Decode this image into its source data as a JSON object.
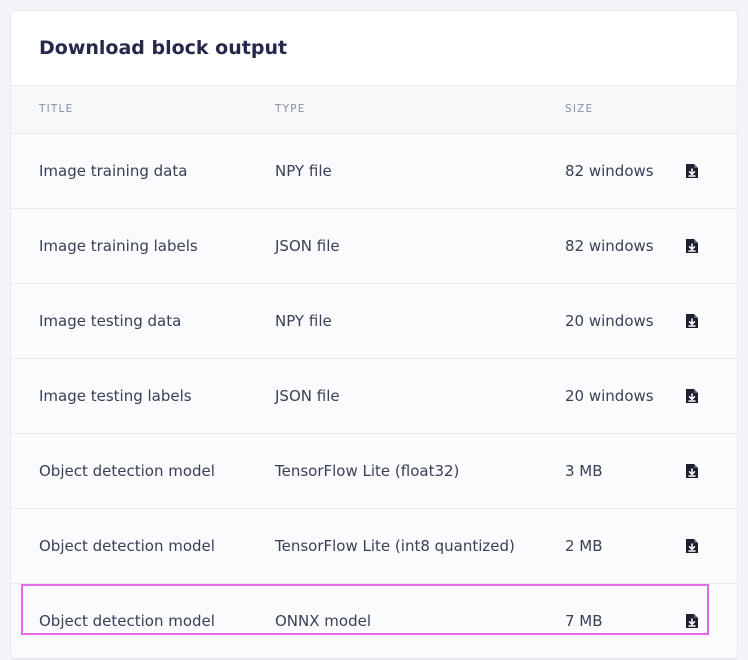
{
  "panel": {
    "title": "Download block output"
  },
  "table": {
    "headers": {
      "title": "TITLE",
      "type": "TYPE",
      "size": "SIZE"
    },
    "rows": [
      {
        "title": "Image training data",
        "type": "NPY file",
        "size": "82 windows",
        "action_icon": "file-download-icon"
      },
      {
        "title": "Image training labels",
        "type": "JSON file",
        "size": "82 windows",
        "action_icon": "file-download-icon"
      },
      {
        "title": "Image testing data",
        "type": "NPY file",
        "size": "20 windows",
        "action_icon": "file-download-icon"
      },
      {
        "title": "Image testing labels",
        "type": "JSON file",
        "size": "20 windows",
        "action_icon": "file-download-icon"
      },
      {
        "title": "Object detection model",
        "type": "TensorFlow Lite (float32)",
        "size": "3 MB",
        "action_icon": "file-download-icon"
      },
      {
        "title": "Object detection model",
        "type": "TensorFlow Lite (int8 quantized)",
        "size": "2 MB",
        "action_icon": "file-download-icon"
      },
      {
        "title": "Object detection model",
        "type": "ONNX model",
        "size": "7 MB",
        "action_icon": "file-download-icon"
      }
    ]
  },
  "highlight": {
    "row": 6,
    "color": "#e36ae6"
  },
  "colors": {
    "title_text": "#25284a",
    "body_text": "#3a3f55",
    "header_text": "#8a8fa3",
    "icon": "#1e2030"
  }
}
